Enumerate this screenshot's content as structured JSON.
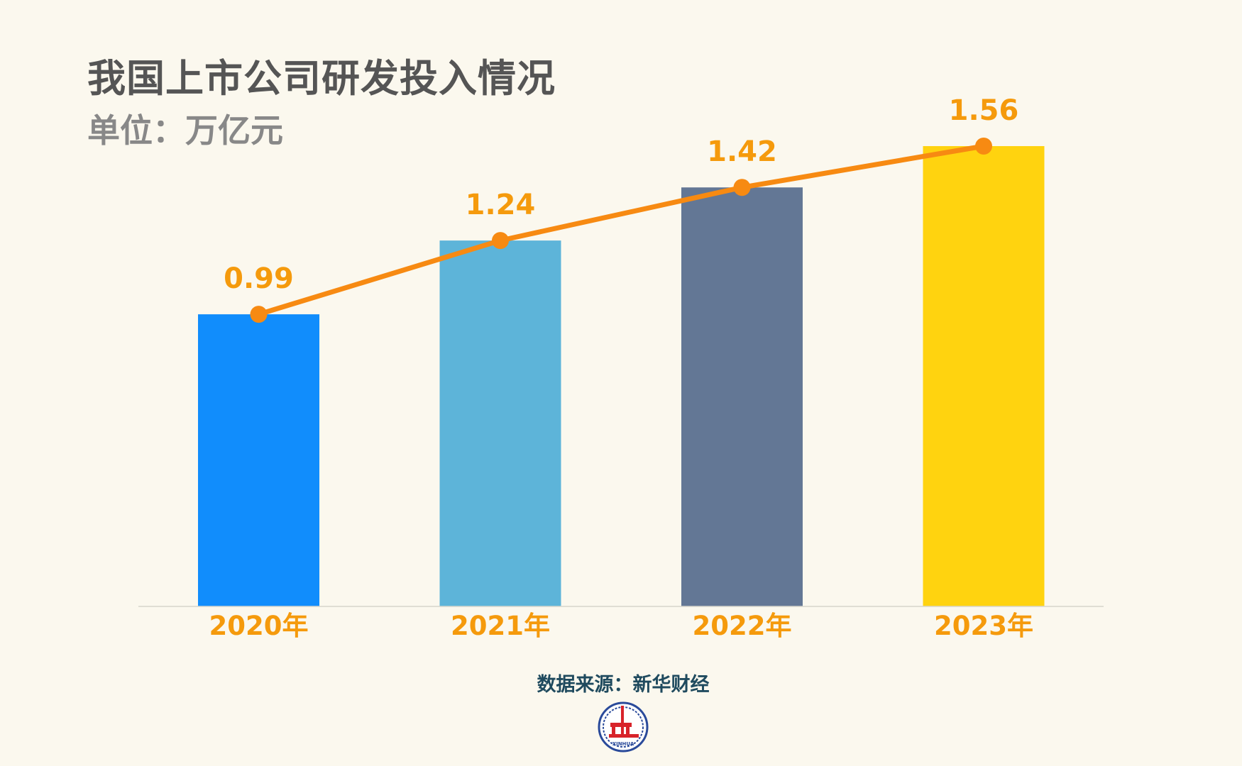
{
  "chart_data": {
    "type": "bar",
    "title": "我国上市公司研发投入情况",
    "subtitle": "单位：万亿元",
    "categories": [
      "2020年",
      "2021年",
      "2022年",
      "2023年"
    ],
    "values": [
      0.99,
      1.24,
      1.42,
      1.56
    ],
    "data_labels": [
      "0.99",
      "1.24",
      "1.42",
      "1.56"
    ],
    "overlay_line": true,
    "bar_colors": [
      "#118dfc",
      "#5db4d9",
      "#637795",
      "#ffd30f"
    ],
    "line_color": "#f78a12",
    "label_color": "#f59a0c",
    "ylim": [
      0,
      1.56
    ],
    "grid": false,
    "source": "数据来源：新华财经"
  },
  "logo": {
    "text": "XINHUA"
  }
}
